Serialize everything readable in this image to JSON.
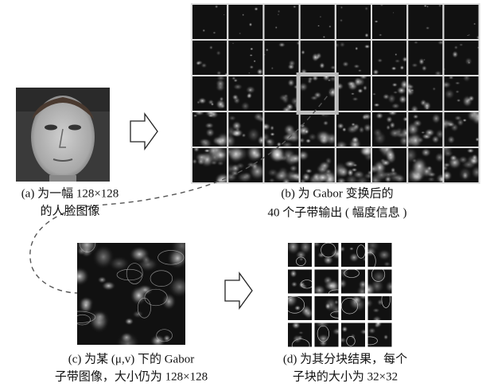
{
  "captions": {
    "a": [
      "(a) 为一幅 128×128",
      "的人脸图像"
    ],
    "b": [
      "(b) 为 Gabor 变换后的",
      "40 个子带输出 ( 幅度信息 )"
    ],
    "c": [
      "(c) 为某 (μ,v) 下的 Gabor",
      "子带图像，大小仍为 128×128"
    ],
    "d": [
      "(d) 为其分块结果，每个",
      "子块的大小为 32×32"
    ]
  }
}
